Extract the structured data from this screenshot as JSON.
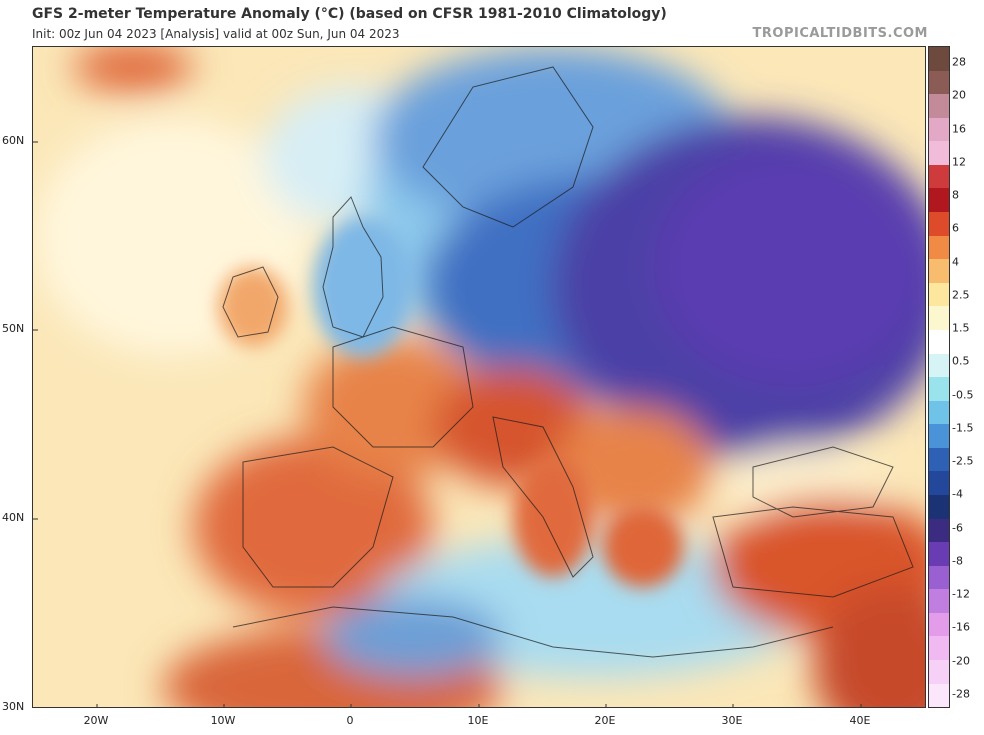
{
  "header": {
    "title": "GFS 2-meter Temperature Anomaly (°C) (based on CFSR 1981-2010 Climatology)",
    "subtitle": "Init: 00z Jun 04 2023   [Analysis]   valid at 00z Sun, Jun 04 2023",
    "brand": "TROPICALTIDBITS.COM"
  },
  "map": {
    "lat_labels": [
      "60N",
      "50N",
      "40N",
      "30N"
    ],
    "lon_labels": [
      "20W",
      "10W",
      "0",
      "10E",
      "20E",
      "30E",
      "40E"
    ],
    "regions": {
      "atlantic_north": "cool-to-neutral",
      "iberia_france_italy": "warm",
      "scandinavia_uk_north_sea": "cool",
      "eastern_europe_russia": "very-cold",
      "mediterranean_central": "cool",
      "north_africa_interior": "mixed-warm",
      "turkey_middle_east": "warm"
    }
  },
  "colorbar": {
    "labels": [
      "28",
      "20",
      "16",
      "12",
      "8",
      "6",
      "4",
      "2.5",
      "1.5",
      "0.5",
      "-0.5",
      "-1.5",
      "-2.5",
      "-4",
      "-6",
      "-8",
      "-12",
      "-16",
      "-20",
      "-28"
    ],
    "colors": [
      "#6e4a3e",
      "#8a5c55",
      "#c38a9a",
      "#e2a8c6",
      "#f0bcd9",
      "#cf3a3c",
      "#b0171f",
      "#dd4b2a",
      "#f08a45",
      "#f7bc6d",
      "#fde69e",
      "#fdf7cf",
      "#ffffff",
      "#d6f3f5",
      "#9be3ec",
      "#6fc3e8",
      "#4a93d8",
      "#2e61b5",
      "#23479a",
      "#1b3275",
      "#3b2c82",
      "#6a3cb4",
      "#9a5fd0",
      "#c07fe0",
      "#e29cea",
      "#f0b9f2",
      "#f6d0f7",
      "#fbe6fb"
    ]
  }
}
